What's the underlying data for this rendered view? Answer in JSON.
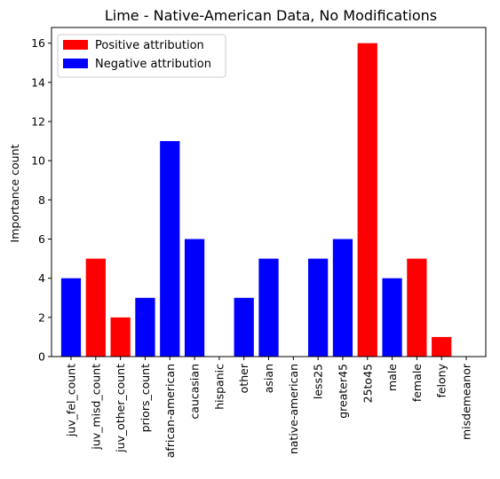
{
  "chart_data": {
    "type": "bar",
    "title": "Lime - Native-American Data, No Modifications",
    "xlabel": "",
    "ylabel": "Importance count",
    "ylim": [
      0,
      16.8
    ],
    "yticks": [
      0,
      2,
      4,
      6,
      8,
      10,
      12,
      14,
      16
    ],
    "grid": false,
    "legend_position": "top-left",
    "categories": [
      "juv_fel_count",
      "juv_misd_count",
      "juv_other_count",
      "priors_count",
      "african-american",
      "caucasian",
      "hispanic",
      "other",
      "asian",
      "native-american",
      "less25",
      "greater45",
      "25to45",
      "male",
      "female",
      "felony",
      "misdemeanor"
    ],
    "values": [
      4,
      5,
      2,
      3,
      11,
      6,
      0,
      3,
      5,
      0,
      5,
      6,
      16,
      4,
      5,
      1,
      0
    ],
    "attribution": [
      "negative",
      "positive",
      "positive",
      "negative",
      "negative",
      "negative",
      "negative",
      "negative",
      "negative",
      "negative",
      "negative",
      "negative",
      "positive",
      "negative",
      "positive",
      "positive",
      "negative"
    ],
    "legend": [
      {
        "key": "positive",
        "label": "Positive attribution",
        "color": "#ff0000"
      },
      {
        "key": "negative",
        "label": "Negative attribution",
        "color": "#0000ff"
      }
    ]
  }
}
